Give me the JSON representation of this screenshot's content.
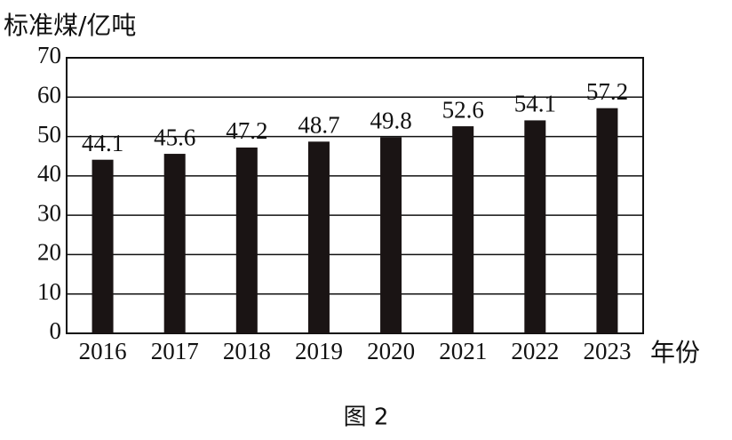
{
  "chart_data": {
    "type": "bar",
    "y_label": "标准煤/亿吨",
    "x_label": "年份",
    "caption": "图 2",
    "categories": [
      "2016",
      "2017",
      "2018",
      "2019",
      "2020",
      "2021",
      "2022",
      "2023"
    ],
    "values": [
      44.1,
      45.6,
      47.2,
      48.7,
      49.8,
      52.6,
      54.1,
      57.2
    ],
    "color": "#1a1414",
    "ylim": [
      0,
      70
    ],
    "yticks": [
      0,
      10,
      20,
      30,
      40,
      50,
      60,
      70
    ],
    "grid": true
  }
}
